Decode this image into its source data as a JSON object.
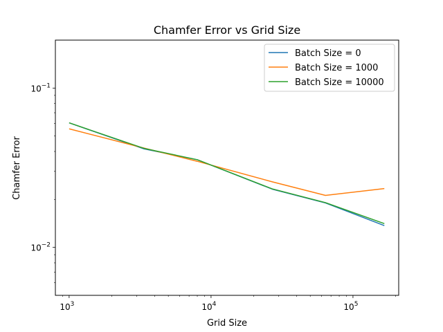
{
  "chart_data": {
    "type": "line",
    "title": "Chamfer Error vs Grid Size",
    "xlabel": "Grid Size",
    "ylabel": "Chamfer Error",
    "xscale": "log",
    "yscale": "log",
    "xlim": [
      800,
      210000
    ],
    "ylim": [
      0.005,
      0.2
    ],
    "grid": false,
    "legend_position": "upper right",
    "x": [
      1000,
      3375,
      8000,
      27000,
      64000,
      166375
    ],
    "series": [
      {
        "name": "Batch Size = 0",
        "color": "#1f77b4",
        "values": [
          0.0605,
          0.0415,
          0.0355,
          0.0232,
          0.019,
          0.0137
        ]
      },
      {
        "name": "Batch Size = 1000",
        "color": "#ff7f0e",
        "values": [
          0.0555,
          0.042,
          0.0347,
          0.0258,
          0.0212,
          0.0234
        ]
      },
      {
        "name": "Batch Size = 10000",
        "color": "#2ca02c",
        "values": [
          0.0605,
          0.0418,
          0.0355,
          0.0233,
          0.0191,
          0.0141
        ]
      }
    ],
    "x_ticks": [
      {
        "value": 1000,
        "base": "10",
        "exp": "3"
      },
      {
        "value": 10000,
        "base": "10",
        "exp": "4"
      },
      {
        "value": 100000,
        "base": "10",
        "exp": "5"
      }
    ],
    "y_ticks": [
      {
        "value": 0.01,
        "base": "10",
        "exp": "−2"
      },
      {
        "value": 0.1,
        "base": "10",
        "exp": "−1"
      }
    ]
  }
}
